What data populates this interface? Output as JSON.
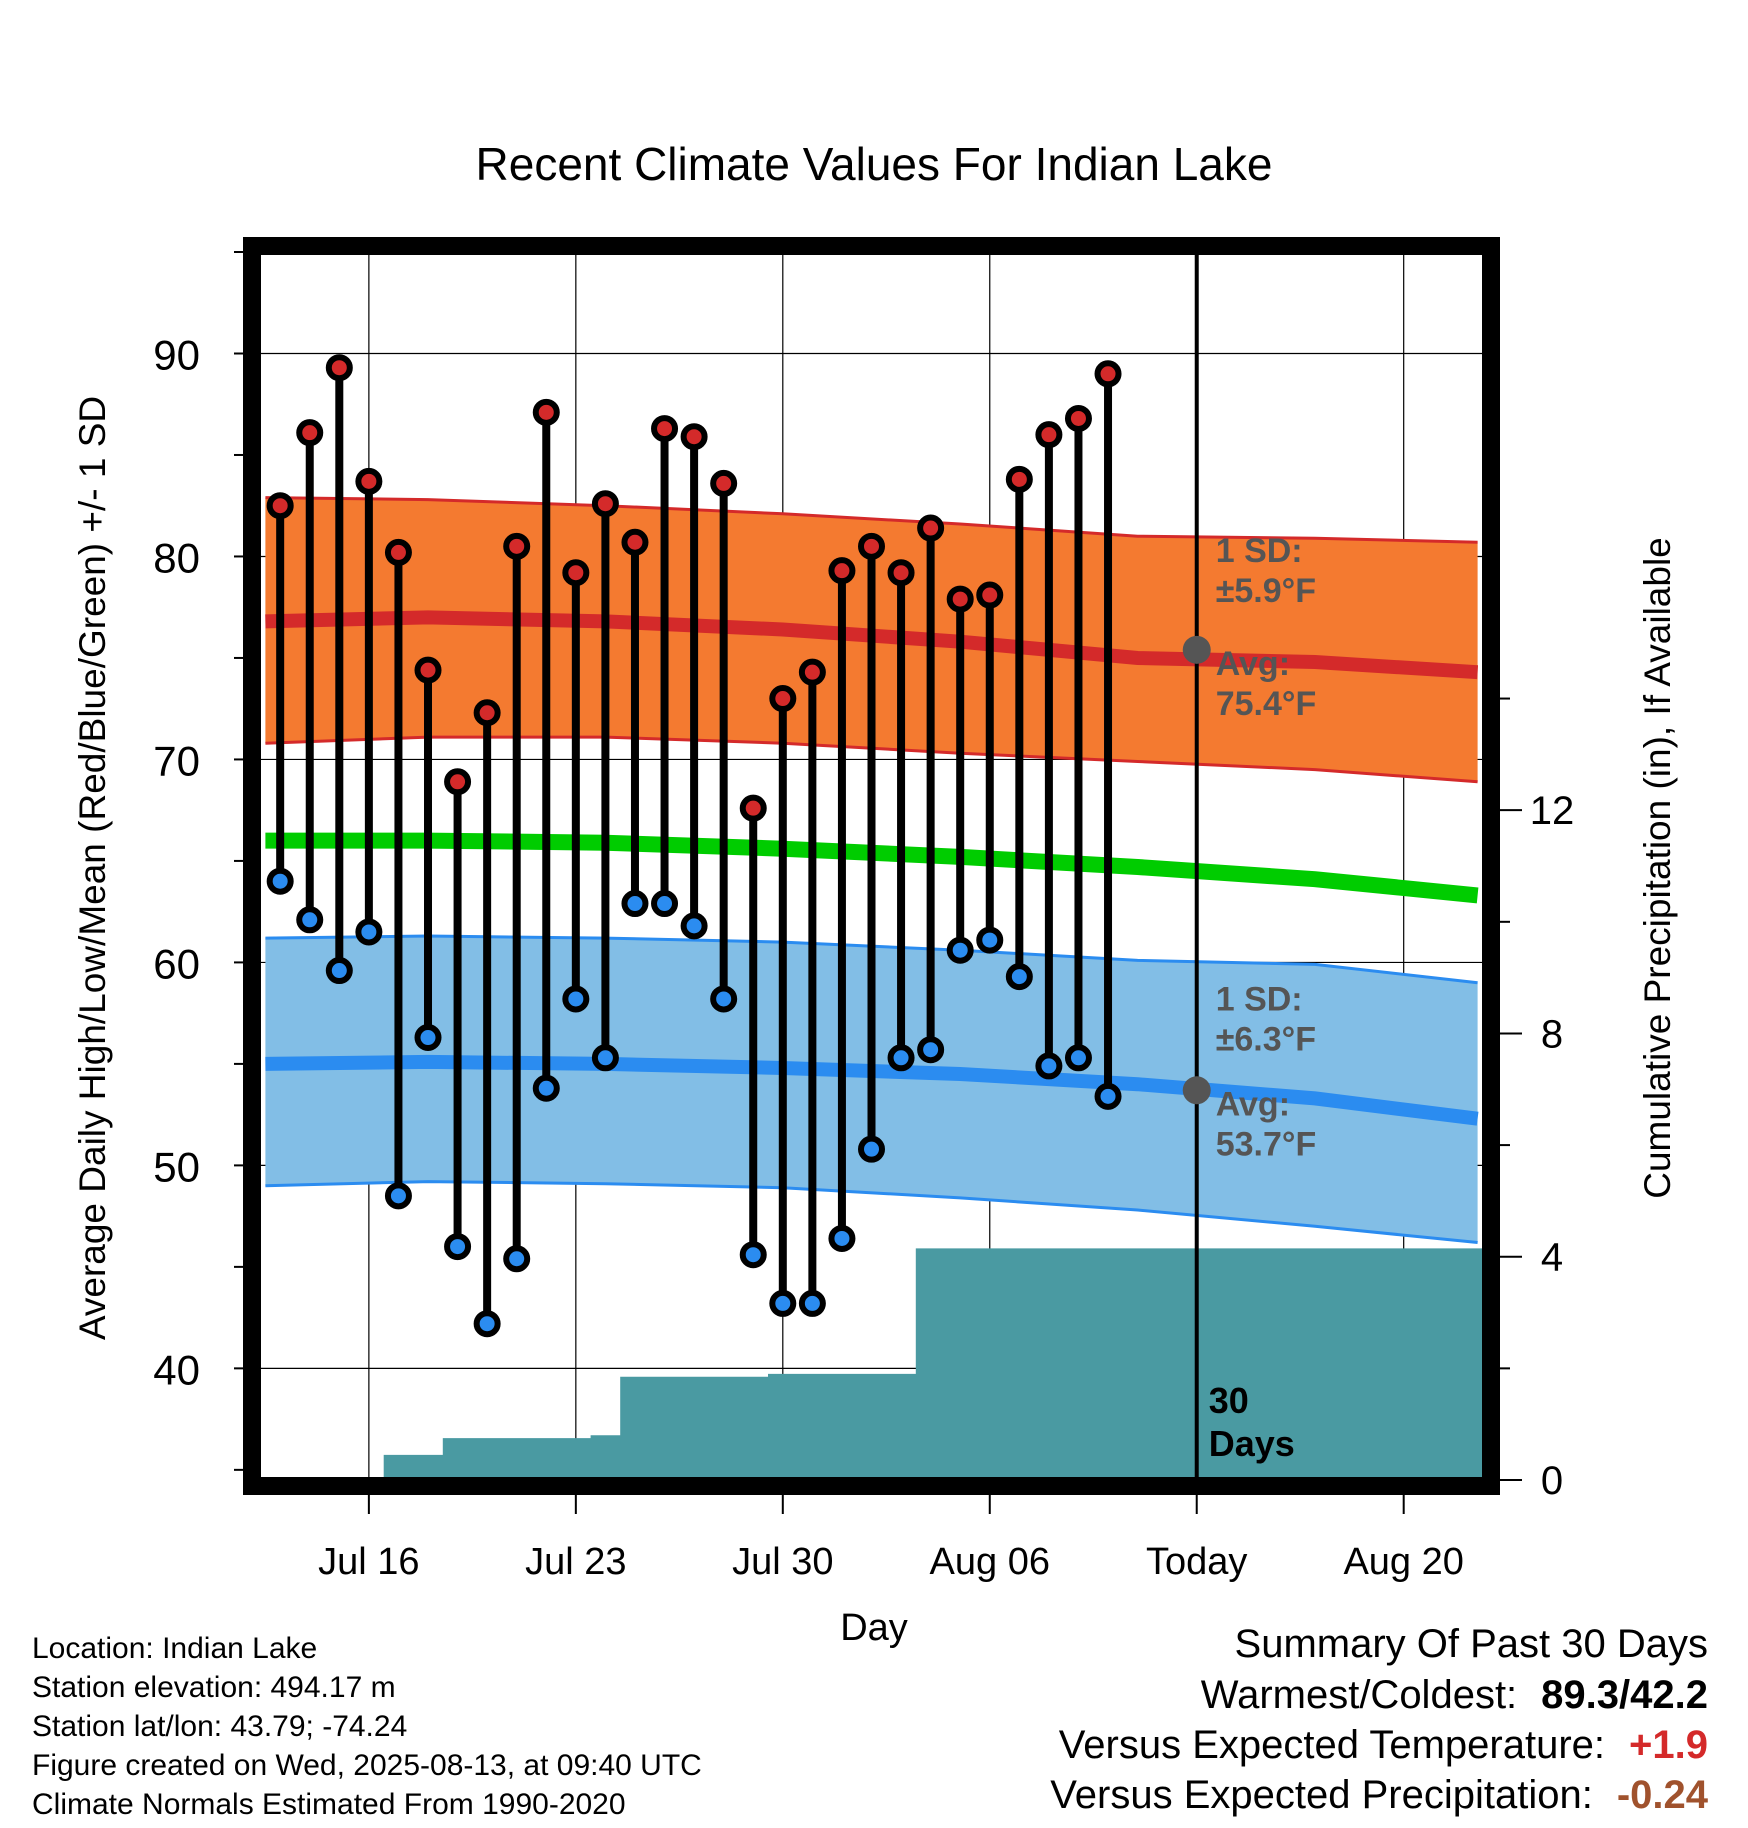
{
  "chart_data": {
    "type": "line",
    "title": "Recent Climate Values For Indian Lake",
    "xlabel": "Day",
    "ylabel": "Average Daily High/Low/Mean (Red/Blue/Green) +/- 1 SD",
    "y2label": "Cumulative Precipitation (in), If Available",
    "x_tick_labels": [
      "Jul 16",
      "Jul 23",
      "Jul 30",
      "Aug 06",
      "Today",
      "Aug 20"
    ],
    "x_tick_days": [
      4,
      11,
      18,
      25,
      32,
      39
    ],
    "x_range_days": [
      0.25,
      41.75
    ],
    "ylim": [
      34.5,
      95
    ],
    "y_ticks": [
      40,
      50,
      60,
      70,
      80,
      90
    ],
    "y2lim": [
      0,
      22
    ],
    "y2_ticks": [
      0,
      4,
      8,
      12
    ],
    "grid": true,
    "days": [
      1,
      2,
      3,
      4,
      5,
      6,
      7,
      8,
      9,
      10,
      11,
      12,
      13,
      14,
      15,
      16,
      17,
      18,
      19,
      20,
      21,
      22,
      23,
      24,
      25,
      26,
      27,
      28,
      29,
      30
    ],
    "series": [
      {
        "name": "High",
        "color": "#d42a2a",
        "values": [
          82.5,
          86.1,
          89.3,
          83.7,
          80.2,
          74.4,
          68.9,
          72.3,
          80.5,
          87.1,
          79.2,
          82.6,
          80.7,
          86.3,
          85.9,
          83.6,
          67.6,
          73.0,
          74.3,
          79.3,
          80.5,
          79.2,
          81.4,
          77.9,
          78.1,
          83.8,
          86.0,
          86.8,
          89.0,
          null
        ]
      },
      {
        "name": "Low",
        "color": "#2b8cf0",
        "values": [
          64.0,
          62.1,
          59.6,
          61.5,
          48.5,
          56.3,
          46.0,
          42.2,
          45.4,
          53.8,
          58.2,
          55.3,
          62.9,
          62.9,
          61.8,
          58.2,
          45.6,
          43.2,
          43.2,
          46.4,
          50.8,
          55.3,
          55.7,
          60.6,
          61.1,
          59.3,
          54.9,
          55.3,
          53.4,
          null
        ]
      }
    ],
    "normals": {
      "days": [
        0.5,
        6,
        12,
        18,
        24,
        30,
        36,
        41.5
      ],
      "high_avg": [
        76.8,
        77.0,
        76.8,
        76.4,
        75.8,
        75.0,
        74.8,
        74.3
      ],
      "high_upper": [
        82.9,
        82.8,
        82.5,
        82.1,
        81.6,
        81.0,
        80.9,
        80.7
      ],
      "high_lower": [
        70.8,
        71.1,
        71.1,
        70.8,
        70.3,
        69.9,
        69.5,
        68.9
      ],
      "mean": [
        66.0,
        66.0,
        65.9,
        65.6,
        65.2,
        64.7,
        64.1,
        63.3
      ],
      "low_avg": [
        55.0,
        55.1,
        55.0,
        54.8,
        54.5,
        54.0,
        53.3,
        52.3
      ],
      "low_upper": [
        61.2,
        61.3,
        61.2,
        61.0,
        60.6,
        60.1,
        59.9,
        59.0
      ],
      "low_lower": [
        49.0,
        49.2,
        49.1,
        48.9,
        48.4,
        47.8,
        47.0,
        46.2
      ]
    },
    "precipitation": {
      "days": [
        1,
        2,
        3,
        4,
        5,
        6,
        7,
        8,
        9,
        10,
        11,
        12,
        13,
        14,
        15,
        16,
        17,
        18,
        19,
        20,
        21,
        22,
        23,
        24,
        25,
        26,
        27,
        28,
        29,
        30
      ],
      "values": [
        0,
        0,
        0,
        0,
        0.45,
        0.45,
        0.75,
        0.75,
        0.75,
        0.75,
        0.75,
        0.8,
        1.85,
        1.85,
        1.85,
        1.85,
        1.85,
        1.9,
        1.9,
        1.9,
        1.9,
        1.9,
        4.15,
        4.15,
        4.15,
        4.15,
        4.15,
        4.15,
        4.15,
        4.15
      ]
    },
    "today_day": 32,
    "today_high_avg": 75.4,
    "today_low_avg": 53.7,
    "high_sd_label": [
      "1 SD:",
      "±5.9°F"
    ],
    "high_avg_label": [
      "Avg:",
      "75.4°F"
    ],
    "low_sd_label": [
      "1 SD:",
      "±6.3°F"
    ],
    "low_avg_label": [
      "Avg:",
      "53.7°F"
    ],
    "days_label": [
      "30",
      "Days"
    ],
    "colors": {
      "high_band": "#f47a30",
      "high_line": "#d42a2a",
      "low_band": "#82bee6",
      "low_line": "#2b8cf0",
      "mean_line": "#00cc00",
      "precip": "#4a9aa2",
      "annotation": "#555555",
      "frame": "#000000"
    }
  },
  "info": {
    "location": "Location: Indian Lake",
    "elevation": "Station elevation: 494.17 m",
    "latlon": "Station lat/lon: 43.79; -74.24",
    "created": "Figure created on Wed, 2025-08-13, at 09:40 UTC",
    "normals": "Climate Normals Estimated From 1990-2020"
  },
  "summary": {
    "title": "Summary Of Past 30 Days",
    "warm_cold_label": "Warmest/Coldest:",
    "warm_cold_value": "89.3/42.2",
    "temp_label": "Versus Expected Temperature:",
    "temp_value": "+1.9",
    "temp_color": "#d42a2a",
    "precip_label": "Versus Expected Precipitation:",
    "precip_value": "-0.24",
    "precip_color": "#a0522d"
  }
}
